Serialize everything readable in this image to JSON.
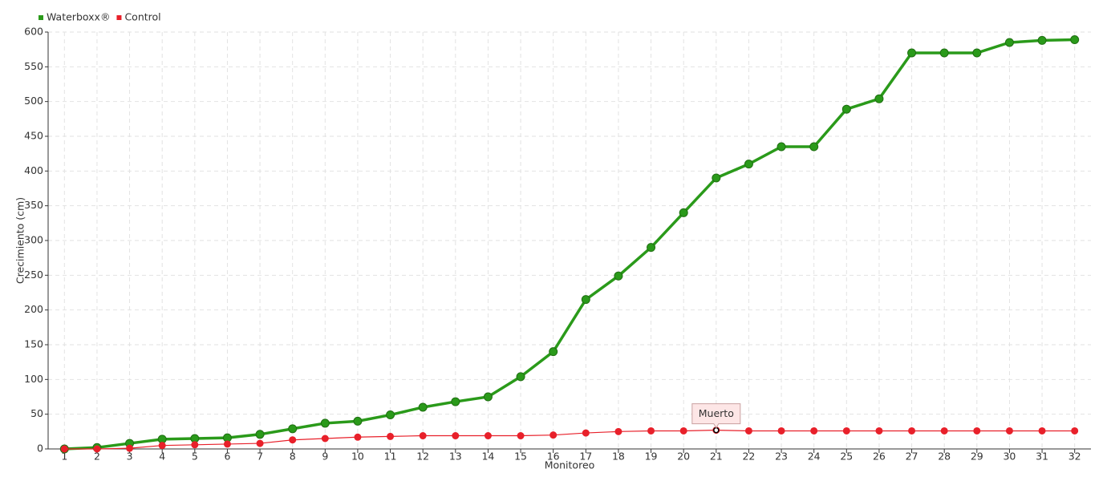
{
  "chart_data": {
    "type": "line",
    "xlabel": "Monitoreo",
    "ylabel": "Crecimiento (cm)",
    "categories": [
      "1",
      "2",
      "3",
      "4",
      "5",
      "6",
      "7",
      "8",
      "9",
      "10",
      "11",
      "12",
      "13",
      "14",
      "15",
      "16",
      "17",
      "18",
      "19",
      "20",
      "21",
      "22",
      "23",
      "24",
      "25",
      "26",
      "27",
      "28",
      "29",
      "30",
      "31",
      "32"
    ],
    "series": [
      {
        "name": "Waterboxx®",
        "color": "#2a9a1a",
        "values": [
          0,
          2,
          8,
          14,
          15,
          16,
          21,
          29,
          37,
          40,
          49,
          60,
          68,
          75,
          104,
          140,
          215,
          249,
          290,
          340,
          390,
          410,
          435,
          435,
          489,
          504,
          570,
          570,
          570,
          585,
          588,
          589
        ]
      },
      {
        "name": "Control",
        "color": "#e8202a",
        "values": [
          0,
          0,
          1,
          5,
          6,
          7,
          8,
          13,
          15,
          17,
          18,
          19,
          19,
          19,
          19,
          20,
          23,
          25,
          26,
          26,
          27,
          26,
          26,
          26,
          26,
          26,
          26,
          26,
          26,
          26,
          26,
          26
        ]
      }
    ],
    "annotation": {
      "text": "Muerto",
      "category": "21",
      "series": "Control"
    },
    "ylim": [
      0,
      600
    ],
    "yticks": [
      0,
      50,
      100,
      150,
      200,
      250,
      300,
      350,
      400,
      450,
      500,
      550,
      600
    ],
    "grid": true,
    "legend": "top-left"
  }
}
